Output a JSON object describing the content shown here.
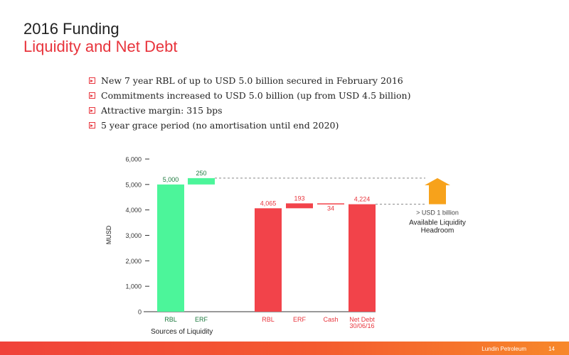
{
  "header": {
    "title": "2016 Funding",
    "subtitle": "Liquidity and Net Debt"
  },
  "bullets": [
    "New 7 year RBL of up to USD 5.0 billion secured in February 2016",
    "Commitments increased to USD 5.0 billion (up from USD 4.5 billion)",
    "Attractive margin: 315 bps",
    "5 year grace period (no amortisation until end 2020)"
  ],
  "colors": {
    "green": "#4cf59a",
    "red": "#f2434a",
    "arrow": "#f7a21b",
    "accent": "#e8343c"
  },
  "chart_data": {
    "type": "bar",
    "ylabel": "MUSD",
    "ylim": [
      0,
      6000
    ],
    "yticks": [
      "0",
      "1,000",
      "2,000",
      "3,000",
      "4,000",
      "5,000",
      "6,000"
    ],
    "group_label": "Sources of Liquidity",
    "bars": [
      {
        "category": "RBL",
        "base": 0,
        "value": 5000,
        "label": "5,000",
        "color": "green"
      },
      {
        "category": "ERF",
        "base": 5000,
        "value": 250,
        "label": "250",
        "color": "green"
      },
      {
        "category": "RBL",
        "base": 0,
        "value": 4065,
        "label": "4,065",
        "color": "red"
      },
      {
        "category": "ERF",
        "base": 4065,
        "value": 193,
        "label": "193",
        "color": "red"
      },
      {
        "category": "Cash",
        "base": 4258,
        "value": -34,
        "label": "34",
        "color": "red"
      },
      {
        "category": "Net Debt\n30/06/16",
        "base": 0,
        "value": 4224,
        "label": "4,224",
        "color": "red"
      }
    ],
    "headroom": {
      "from": 4224,
      "to": 5250,
      "note": "> USD 1 billion",
      "label": "Available Liquidity\nHeadroom"
    }
  },
  "footer": {
    "company": "Lundin Petroleum",
    "page": "14"
  }
}
